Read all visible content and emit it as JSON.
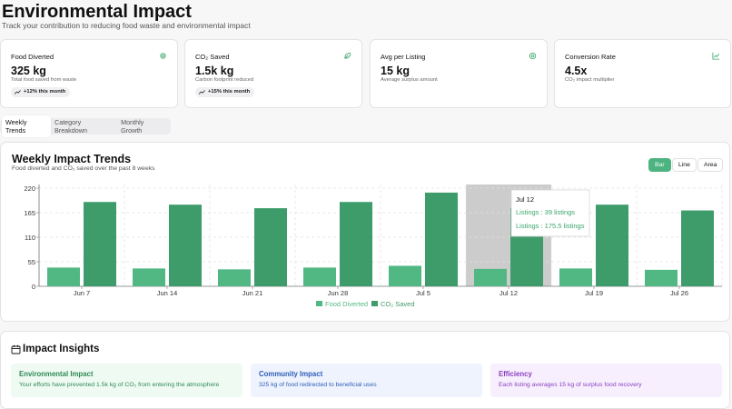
{
  "header": {
    "title": "Environmental Impact",
    "subtitle": "Track your contribution to reducing food waste and environmental impact"
  },
  "stats": [
    {
      "label": "Food Diverted",
      "value": "325 kg",
      "desc": "Total food saved from waste",
      "badge": "+12% this month",
      "icon": "gear-icon"
    },
    {
      "label": "CO₂ Saved",
      "value": "1.5k kg",
      "desc": "Carbon footprint reduced",
      "badge": "+15% this month",
      "icon": "leaf-icon"
    },
    {
      "label": "Avg per Listing",
      "value": "15 kg",
      "desc": "Average surplus amount",
      "badge": "",
      "icon": "target-icon"
    },
    {
      "label": "Conversion Rate",
      "value": "4.5x",
      "desc": "CO₂ impact multiplier",
      "badge": "",
      "icon": "chart-icon"
    }
  ],
  "tabs": [
    "Weekly Trends",
    "Category Breakdown",
    "Monthly Growth"
  ],
  "chart_card": {
    "title": "Weekly Impact Trends",
    "subtitle": "Food diverted and CO₂ saved over the past 8 weeks",
    "types": [
      "Bar",
      "Line",
      "Area"
    ],
    "active_type": "Bar"
  },
  "tooltip": {
    "title": "Jul 12",
    "lines": [
      "Listings : 39 listings",
      "Listings : 175.5 listings"
    ]
  },
  "chart_data": {
    "type": "bar",
    "categories": [
      "Jun 7",
      "Jun 14",
      "Jun 21",
      "Jun 28",
      "Jul 5",
      "Jul 12",
      "Jul 19",
      "Jul 26"
    ],
    "series": [
      {
        "name": "Food Diverted",
        "color": "#52b883",
        "values": [
          42,
          40,
          38,
          42,
          46,
          39,
          40,
          37
        ]
      },
      {
        "name": "CO₂ Saved",
        "color": "#3e9c6b",
        "values": [
          189,
          183,
          175,
          189,
          210,
          175.5,
          183,
          170
        ]
      }
    ],
    "yticks": [
      0,
      55,
      110,
      165,
      220
    ],
    "ylim": [
      0,
      220
    ],
    "grid": true,
    "legend": "bottom",
    "highlight_category": "Jul 12"
  },
  "insights": {
    "title": "Impact Insights",
    "items": [
      {
        "heading": "Environmental Impact",
        "text": "Your efforts have prevented 1.5k kg of CO₂ from entering the atmosphere",
        "bg": "#eefaf2",
        "color": "#2f8a55"
      },
      {
        "heading": "Community Impact",
        "text": "325 kg of food redirected to beneficial uses",
        "bg": "#eef3fd",
        "color": "#2e5eb8"
      },
      {
        "heading": "Efficiency",
        "text": "Each listing averages 15 kg of surplus food recovery",
        "bg": "#f7effd",
        "color": "#8a3fc0"
      }
    ]
  }
}
